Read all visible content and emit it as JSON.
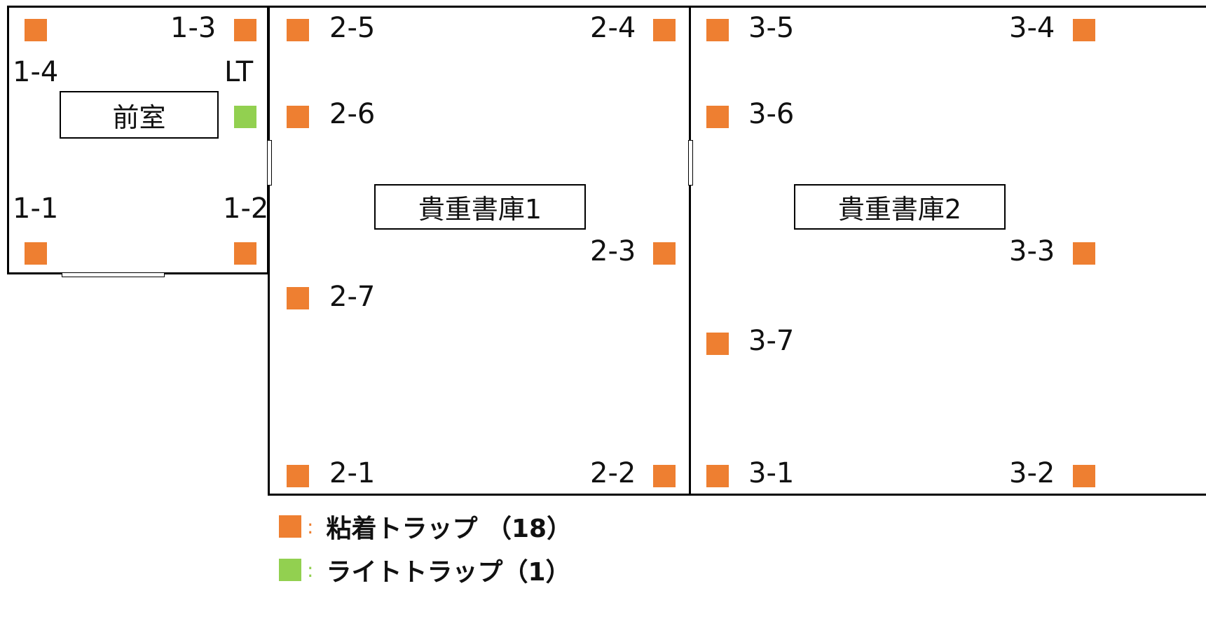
{
  "rooms": {
    "anteroom": "前室",
    "vault1": "貴重書庫1",
    "vault2": "貴重書庫2"
  },
  "traps": {
    "t1_1": "1-1",
    "t1_2": "1-2",
    "t1_3": "1-3",
    "t1_4": "1-4",
    "lt": "LT",
    "t2_1": "2-1",
    "t2_2": "2-2",
    "t2_3": "2-3",
    "t2_4": "2-4",
    "t2_5": "2-5",
    "t2_6": "2-6",
    "t2_7": "2-7",
    "t3_1": "3-1",
    "t3_2": "3-2",
    "t3_3": "3-3",
    "t3_4": "3-4",
    "t3_5": "3-5",
    "t3_6": "3-6",
    "t3_7": "3-7"
  },
  "legend": {
    "sticky": {
      "colon": ":",
      "label": "粘着トラップ （18）"
    },
    "light": {
      "colon": ":",
      "label": "ライトトラップ（1）"
    }
  },
  "colors": {
    "sticky_trap": "#ee7f31",
    "light_trap": "#92d050"
  }
}
